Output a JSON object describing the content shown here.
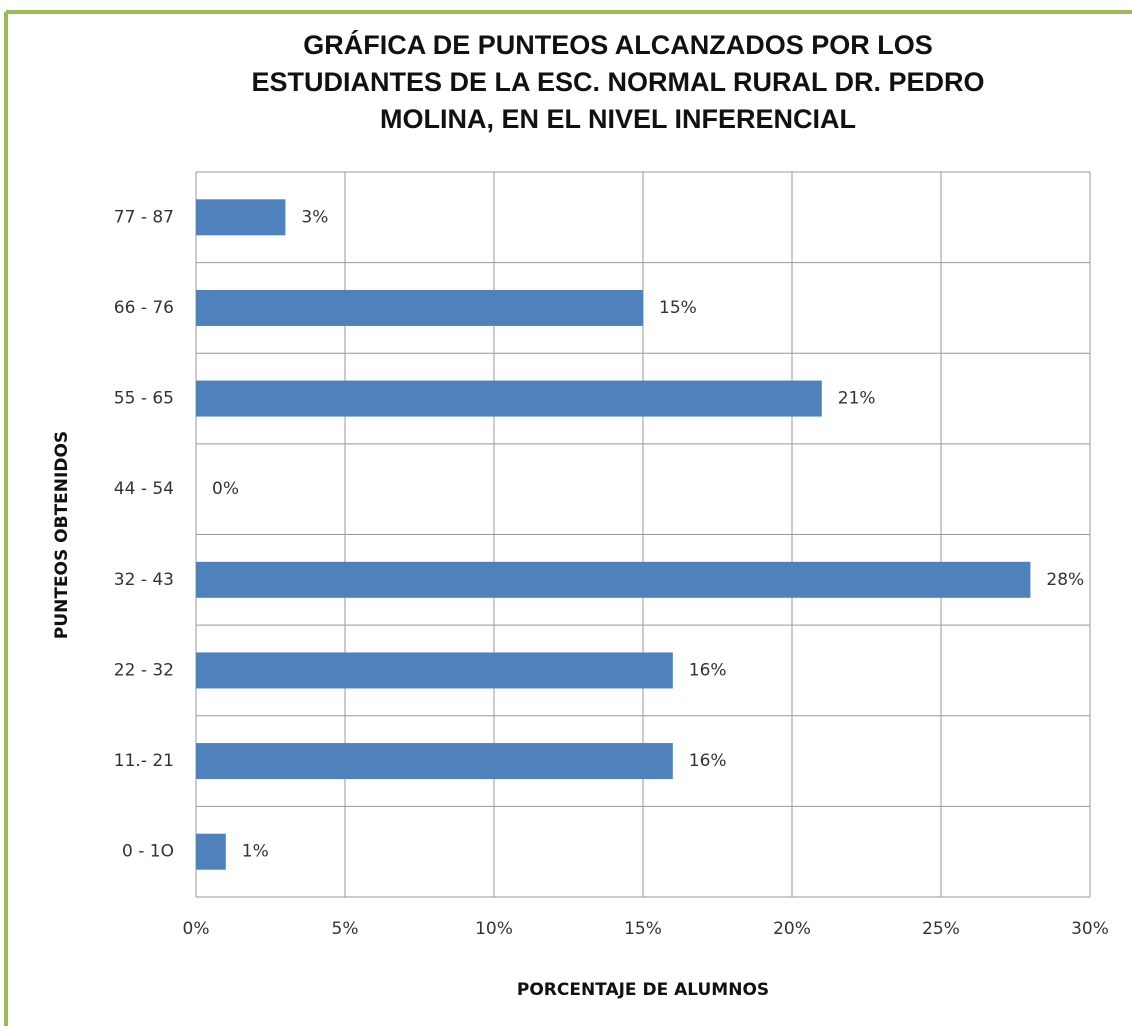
{
  "chart_data": {
    "type": "barh",
    "title": [
      "GRÁFICA DE PUNTEOS ALCANZADOS  POR LOS",
      "ESTUDIANTES DE LA  ESC. NORMAL RURAL DR. PEDRO",
      "MOLINA, EN  EL NIVEL INFERENCIAL"
    ],
    "xlabel": "PORCENTAJE DE ALUMNOS",
    "ylabel": "PUNTEOS OBTENIDOS",
    "categories": [
      "77 - 87",
      "66 - 76",
      "55 - 65",
      "44 - 54",
      "32 - 43",
      "22 - 32",
      "11.- 21",
      "0 - 1O"
    ],
    "values": [
      3,
      15,
      21,
      0,
      28,
      16,
      16,
      1
    ],
    "value_labels": [
      "3%",
      "15%",
      "21%",
      "0%",
      "28%",
      "16%",
      "16%",
      "1%"
    ],
    "color": "#4f81bd",
    "xlim": [
      0,
      30
    ],
    "xticks": [
      {
        "value": 0,
        "label": "0%"
      },
      {
        "value": 5,
        "label": "5%"
      },
      {
        "value": 10,
        "label": "10%"
      },
      {
        "value": 15,
        "label": "15%"
      },
      {
        "value": 20,
        "label": "20%"
      },
      {
        "value": 25,
        "label": "25%"
      },
      {
        "value": 30,
        "label": "30%"
      }
    ],
    "grid": true
  }
}
